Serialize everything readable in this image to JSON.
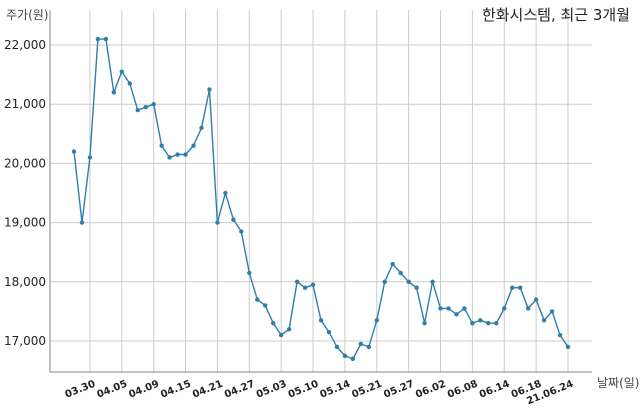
{
  "chart_data": {
    "type": "line",
    "title": "한화시스템, 최근 3개월",
    "ylabel": "주가(원)",
    "xlabel": "날짜(일)",
    "ylim": [
      16500,
      22400
    ],
    "yticks": [
      17000,
      18000,
      19000,
      20000,
      21000,
      22000
    ],
    "ytick_labels": [
      "17,000",
      "18,000",
      "19,000",
      "20,000",
      "21,000",
      "22,000"
    ],
    "x_tick_labels": [
      "03.30",
      "04.05",
      "04.09",
      "04.15",
      "04.21",
      "04.27",
      "05.03",
      "05.10",
      "05.14",
      "05.21",
      "05.27",
      "06.02",
      "06.08",
      "06.14",
      "06.18",
      "21.06.24"
    ],
    "x_tick_index": [
      2,
      6,
      10,
      14,
      18,
      22,
      26,
      30,
      34,
      38,
      42,
      46,
      50,
      54,
      58,
      62
    ],
    "grid": true,
    "colors": {
      "line": "#2f7fab",
      "grid": "#cccccc",
      "axis": "#888888"
    },
    "series": [
      {
        "values": [
          20200,
          19000,
          20100,
          22100,
          22100,
          21200,
          21550,
          21350,
          20900,
          20950,
          21000,
          20300,
          20100,
          20150,
          20150,
          20300,
          20600,
          21250,
          19000,
          19500,
          19050,
          18850,
          18150,
          17700,
          17600,
          17300,
          17100,
          17200,
          18000,
          17900,
          17950,
          17350,
          17150,
          16900,
          16750,
          16700,
          16950,
          16900,
          17350,
          18000,
          18300,
          18150,
          18000,
          17900,
          17300,
          18000,
          17550,
          17550,
          17450,
          17550,
          17300,
          17350,
          17300,
          17300,
          17550,
          17900,
          17900,
          17550,
          17700,
          17350,
          17500,
          17100,
          16900
        ]
      }
    ]
  }
}
